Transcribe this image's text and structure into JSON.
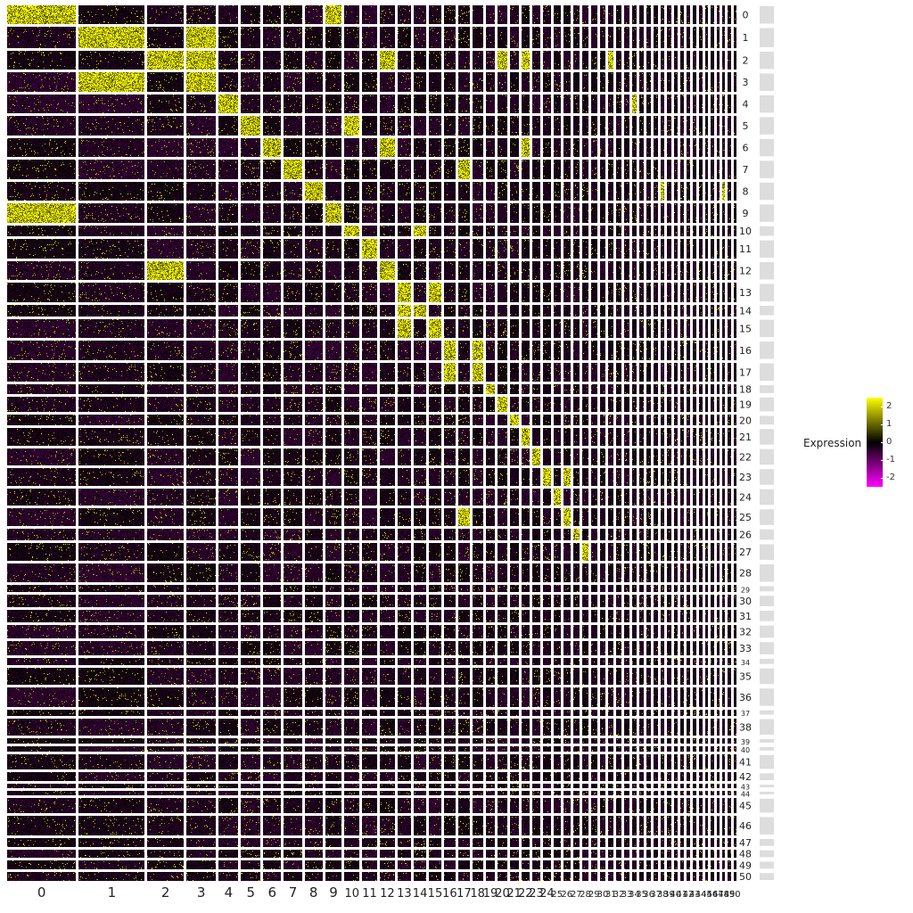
{
  "chart_data": {
    "type": "heatmap",
    "title": "",
    "xlabel": "",
    "ylabel": "",
    "x_groups": [
      "0",
      "1",
      "2",
      "3",
      "4",
      "5",
      "6",
      "7",
      "8",
      "9",
      "10",
      "11",
      "12",
      "13",
      "14",
      "15",
      "16",
      "17",
      "18",
      "19",
      "20",
      "21",
      "22",
      "23",
      "24",
      "25",
      "26",
      "27",
      "28",
      "29",
      "30",
      "31",
      "32",
      "33",
      "34",
      "35",
      "36",
      "37",
      "38",
      "39",
      "40",
      "41",
      "42",
      "43",
      "44",
      "45",
      "46",
      "47",
      "48",
      "49",
      "50"
    ],
    "y_groups": [
      "0",
      "1",
      "2",
      "3",
      "4",
      "5",
      "6",
      "7",
      "8",
      "9",
      "10",
      "11",
      "12",
      "13",
      "14",
      "15",
      "16",
      "17",
      "18",
      "19",
      "20",
      "21",
      "22",
      "23",
      "24",
      "25",
      "26",
      "27",
      "28",
      "29",
      "30",
      "31",
      "32",
      "33",
      "34",
      "35",
      "36",
      "37",
      "38",
      "39",
      "40",
      "41",
      "42",
      "43",
      "44",
      "45",
      "46",
      "47",
      "48",
      "49",
      "50"
    ],
    "x_group_relative_sizes": [
      92,
      88,
      48,
      40,
      26,
      26,
      24,
      24,
      24,
      22,
      20,
      20,
      20,
      18,
      17,
      16,
      16,
      15,
      14,
      13,
      12,
      12,
      11,
      11,
      10,
      10,
      9,
      9,
      8,
      8,
      8,
      7,
      7,
      7,
      6,
      6,
      6,
      6,
      5,
      5,
      5,
      5,
      5,
      5,
      4,
      4,
      4,
      4,
      4,
      4,
      4
    ],
    "y_group_relative_sizes": [
      22,
      24,
      22,
      22,
      22,
      22,
      22,
      22,
      22,
      22,
      13,
      22,
      22,
      22,
      13,
      22,
      22,
      22,
      11,
      18,
      12,
      20,
      20,
      20,
      20,
      20,
      14,
      20,
      22,
      8,
      14,
      14,
      16,
      16,
      8,
      20,
      22,
      7,
      20,
      6,
      6,
      18,
      10,
      5,
      5,
      18,
      22,
      10,
      10,
      10,
      10
    ],
    "high_blocks": [
      [
        "0",
        [
          "0",
          "9"
        ]
      ],
      [
        "1",
        [
          "1",
          "3"
        ]
      ],
      [
        "2",
        [
          "2",
          "3",
          "12",
          "20",
          "22",
          "31"
        ]
      ],
      [
        "3",
        [
          "1",
          "3"
        ]
      ],
      [
        "4",
        [
          "4",
          "34"
        ]
      ],
      [
        "5",
        [
          "5",
          "10"
        ]
      ],
      [
        "6",
        [
          "6",
          "12",
          "22"
        ]
      ],
      [
        "7",
        [
          "7",
          "17"
        ]
      ],
      [
        "8",
        [
          "8",
          "38",
          "48"
        ]
      ],
      [
        "9",
        [
          "0",
          "9"
        ]
      ],
      [
        "10",
        [
          "10",
          "14"
        ]
      ],
      [
        "11",
        [
          "11"
        ]
      ],
      [
        "12",
        [
          "2",
          "12"
        ]
      ],
      [
        "13",
        [
          "13",
          "15"
        ]
      ],
      [
        "14",
        [
          "13",
          "14"
        ]
      ],
      [
        "15",
        [
          "13",
          "15"
        ]
      ],
      [
        "16",
        [
          "16",
          "18"
        ]
      ],
      [
        "17",
        [
          "16",
          "18"
        ]
      ],
      [
        "18",
        [
          "19"
        ]
      ],
      [
        "19",
        [
          "20"
        ]
      ],
      [
        "20",
        [
          "21"
        ]
      ],
      [
        "21",
        [
          "22"
        ]
      ],
      [
        "22",
        [
          "23"
        ]
      ],
      [
        "23",
        [
          "24",
          "26"
        ]
      ],
      [
        "24",
        [
          "25"
        ]
      ],
      [
        "25",
        [
          "26",
          "17"
        ]
      ],
      [
        "26",
        [
          "27"
        ]
      ],
      [
        "27",
        [
          "28"
        ]
      ]
    ],
    "colorscale": {
      "low": "#FF00FF",
      "mid": "#000000",
      "high": "#FFFF00",
      "domain": [
        -2.5,
        2.5
      ]
    },
    "legend": {
      "title": "Expression",
      "ticks": [
        "2",
        "1",
        "0",
        "-1",
        "-2"
      ],
      "tick_values": [
        2,
        1,
        0,
        -1,
        -2
      ],
      "position": "right"
    }
  }
}
